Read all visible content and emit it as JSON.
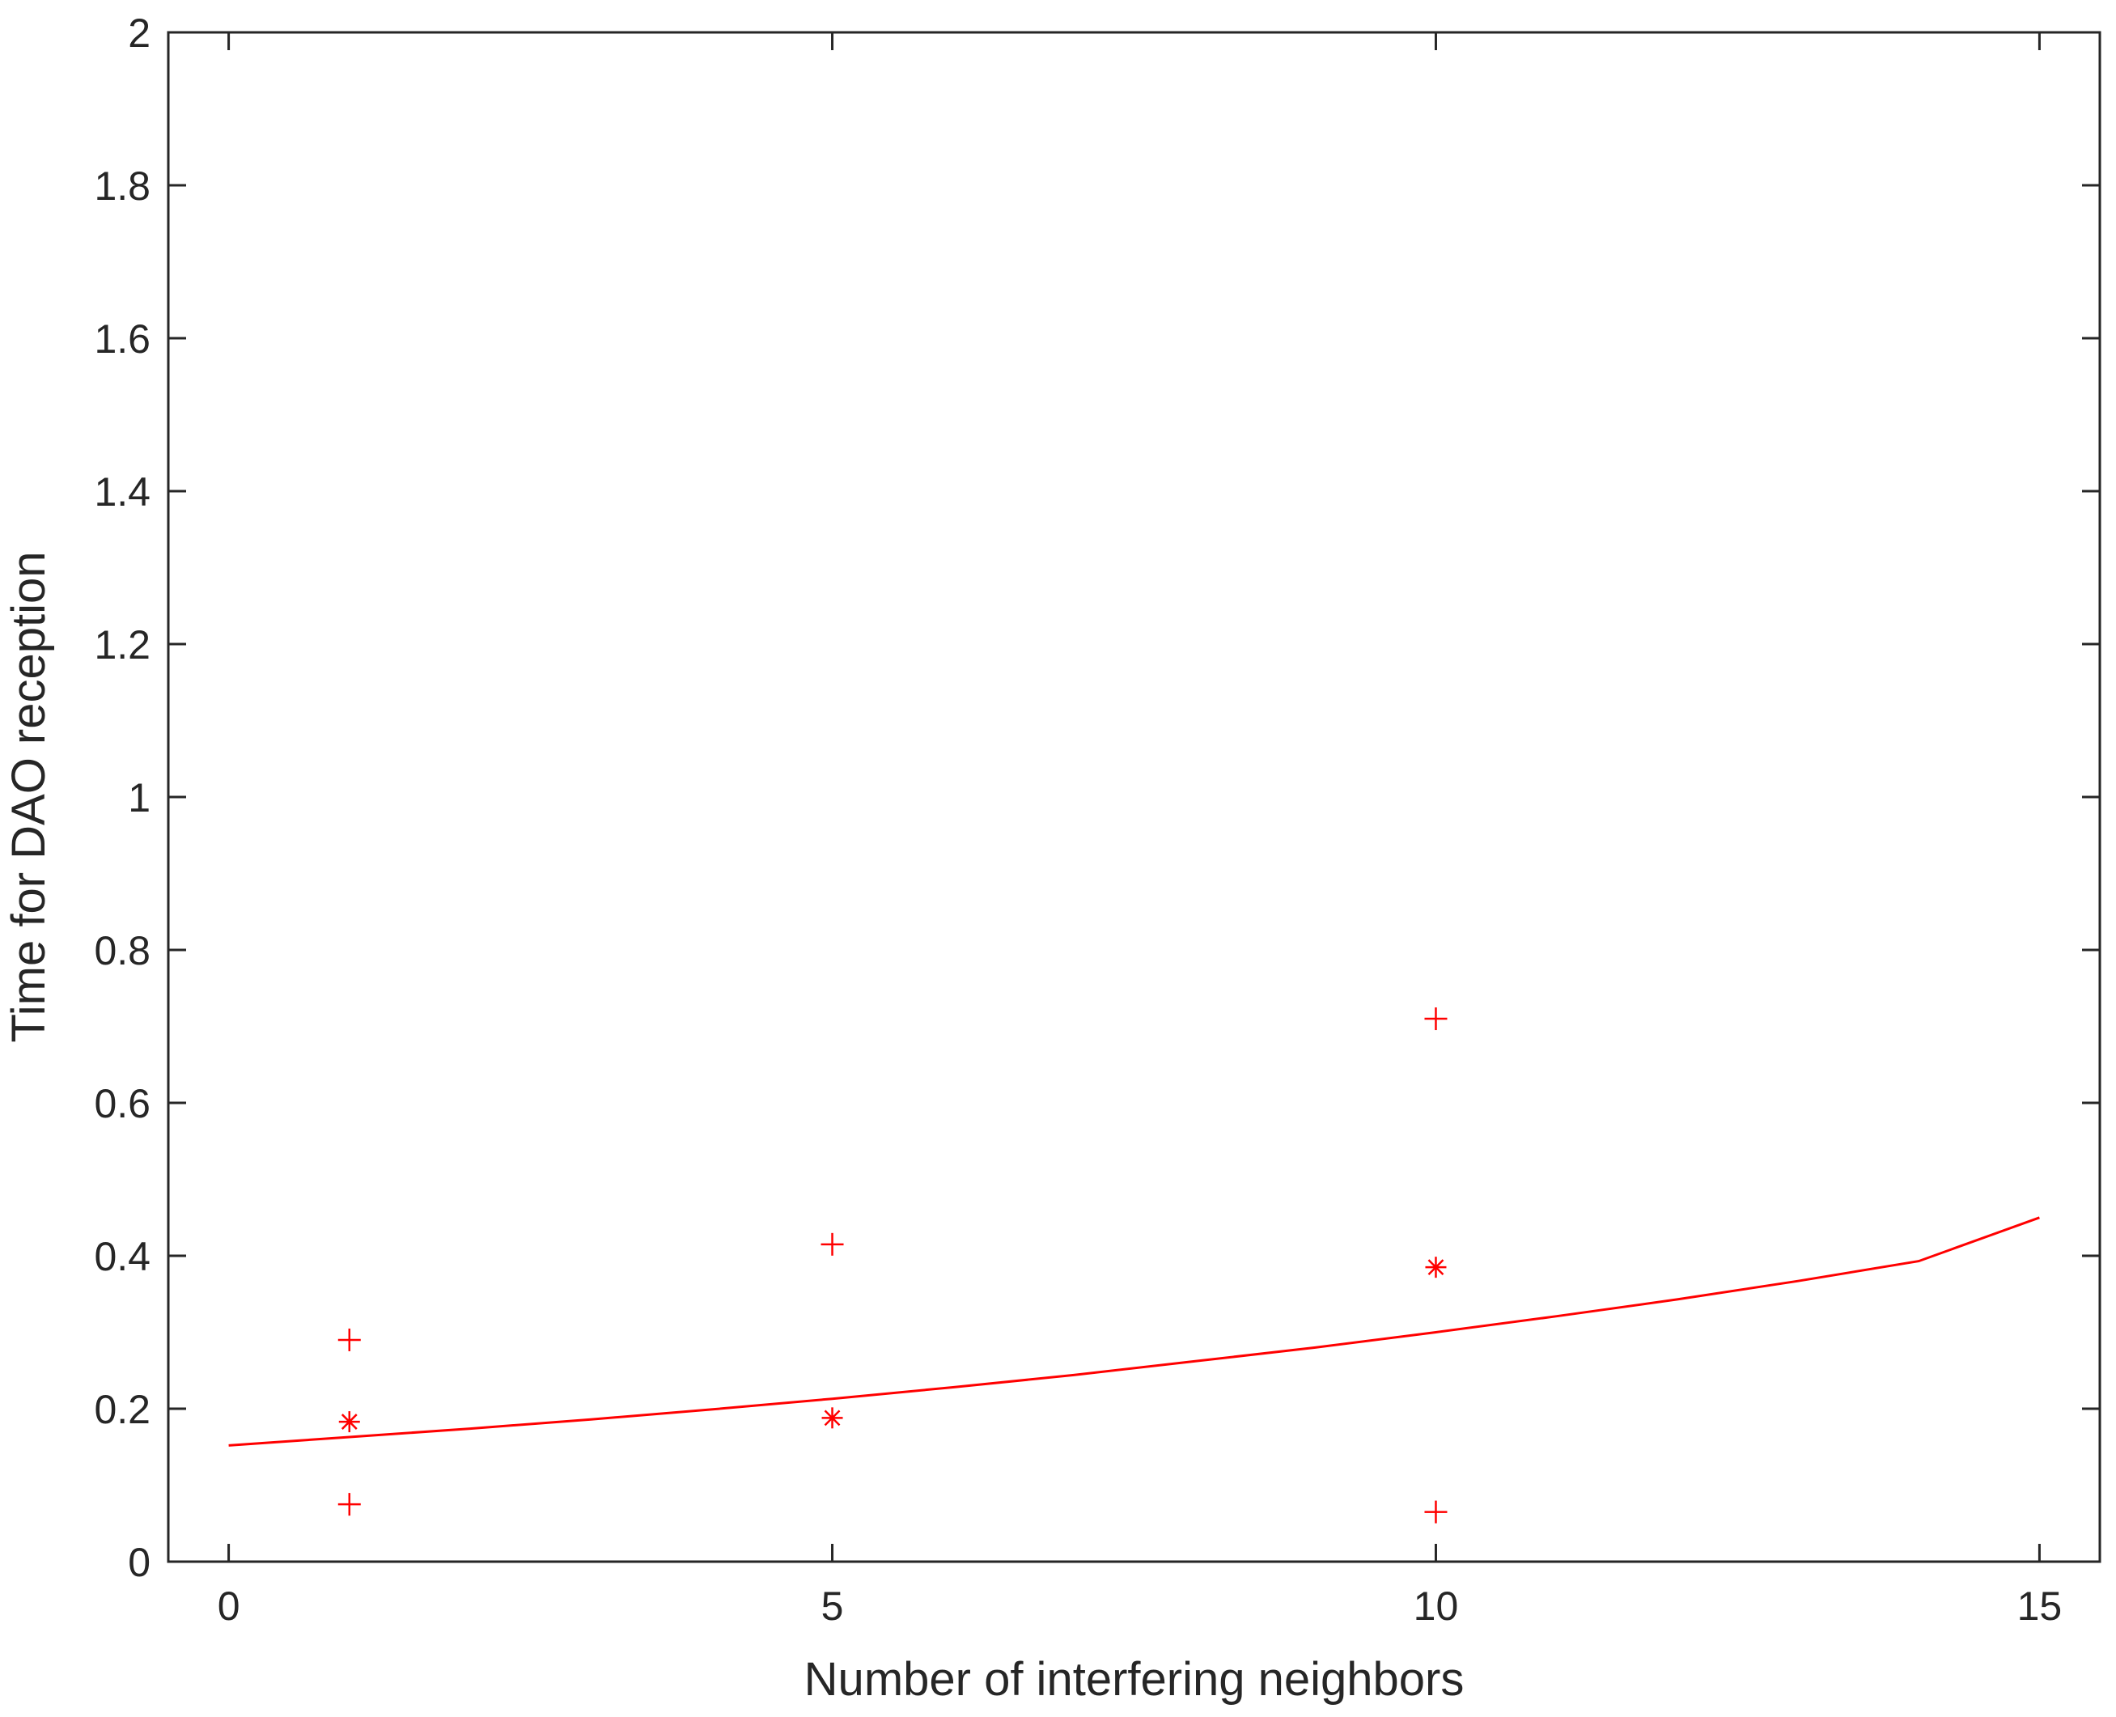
{
  "chart_data": {
    "type": "scatter",
    "title": "",
    "xlabel": "Number of interfering neighbors",
    "ylabel": "Time for DAO reception",
    "xlim": [
      -0.5,
      15.5
    ],
    "ylim": [
      0,
      2
    ],
    "xticks": [
      0,
      5,
      10,
      15
    ],
    "xtick_labels": [
      "0",
      "5",
      "10",
      "15"
    ],
    "yticks": [
      0,
      0.2,
      0.4,
      0.6,
      0.8,
      1.0,
      1.2,
      1.4,
      1.6,
      1.8,
      2.0
    ],
    "ytick_labels": [
      "0",
      "0.2",
      "0.4",
      "0.6",
      "0.8",
      "1",
      "1.2",
      "1.4",
      "1.6",
      "1.8",
      "2"
    ],
    "grid": false,
    "box": true,
    "color": "#ff0000",
    "series": [
      {
        "marker": "plus",
        "x": [
          1,
          1,
          5,
          10,
          10
        ],
        "y": [
          0.29,
          0.075,
          0.415,
          0.71,
          0.065
        ]
      },
      {
        "marker": "asterisk",
        "x": [
          1,
          5,
          10
        ],
        "y": [
          0.183,
          0.188,
          0.385
        ]
      },
      {
        "marker": "line",
        "x": [
          0,
          1,
          2,
          3,
          4,
          5,
          6,
          7,
          8,
          9,
          10,
          11,
          12,
          13,
          14,
          15
        ],
        "y": [
          0.152,
          0.163,
          0.174,
          0.186,
          0.199,
          0.213,
          0.228,
          0.244,
          0.262,
          0.28,
          0.3,
          0.321,
          0.343,
          0.367,
          0.393,
          0.45
        ]
      }
    ]
  }
}
